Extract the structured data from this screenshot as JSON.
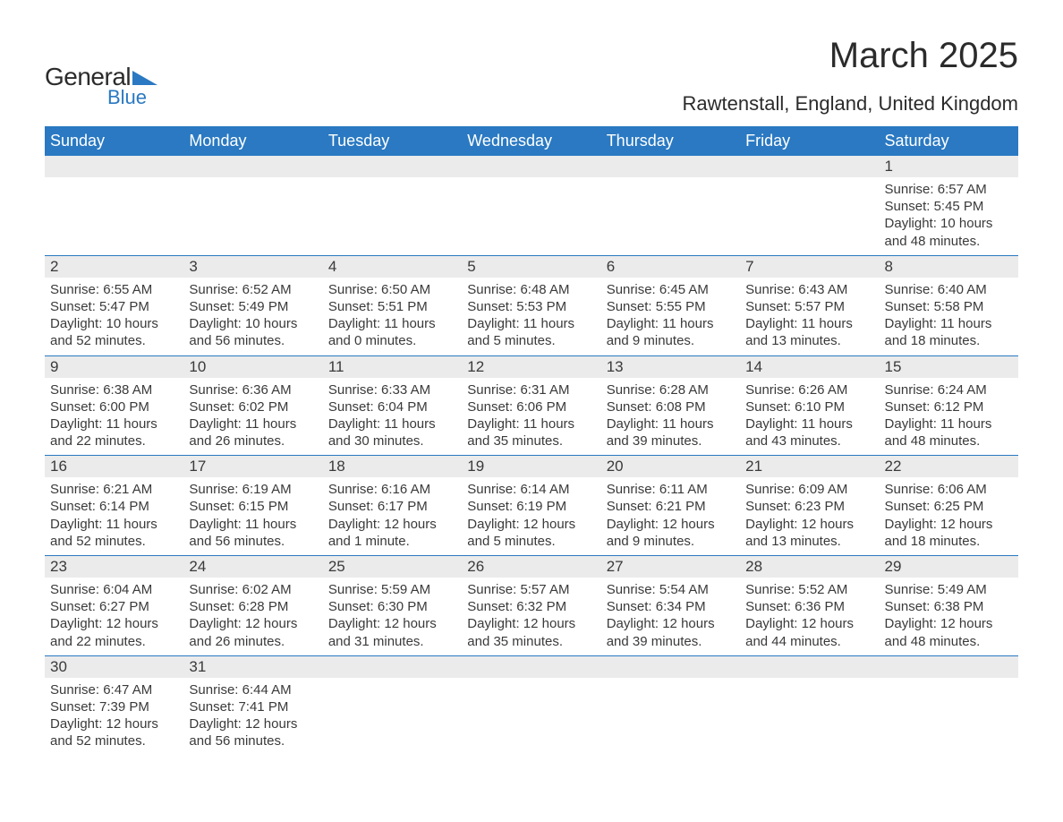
{
  "logo": {
    "text_general": "General",
    "text_blue": "Blue",
    "brand_color": "#2a79c2"
  },
  "title": "March 2025",
  "location": "Rawtenstall, England, United Kingdom",
  "day_headers": [
    "Sunday",
    "Monday",
    "Tuesday",
    "Wednesday",
    "Thursday",
    "Friday",
    "Saturday"
  ],
  "colors": {
    "header_bg": "#2a79c2",
    "header_text": "#ffffff",
    "daynum_bg": "#ebebeb",
    "text": "#3a3a3a",
    "rule": "#2a79c2",
    "page_bg": "#ffffff"
  },
  "typography": {
    "title_fontsize": 40,
    "location_fontsize": 22,
    "header_fontsize": 18,
    "daynum_fontsize": 17,
    "body_fontsize": 15
  },
  "weeks": [
    [
      null,
      null,
      null,
      null,
      null,
      null,
      {
        "day": "1",
        "sunrise": "Sunrise: 6:57 AM",
        "sunset": "Sunset: 5:45 PM",
        "daylight": "Daylight: 10 hours and 48 minutes."
      }
    ],
    [
      {
        "day": "2",
        "sunrise": "Sunrise: 6:55 AM",
        "sunset": "Sunset: 5:47 PM",
        "daylight": "Daylight: 10 hours and 52 minutes."
      },
      {
        "day": "3",
        "sunrise": "Sunrise: 6:52 AM",
        "sunset": "Sunset: 5:49 PM",
        "daylight": "Daylight: 10 hours and 56 minutes."
      },
      {
        "day": "4",
        "sunrise": "Sunrise: 6:50 AM",
        "sunset": "Sunset: 5:51 PM",
        "daylight": "Daylight: 11 hours and 0 minutes."
      },
      {
        "day": "5",
        "sunrise": "Sunrise: 6:48 AM",
        "sunset": "Sunset: 5:53 PM",
        "daylight": "Daylight: 11 hours and 5 minutes."
      },
      {
        "day": "6",
        "sunrise": "Sunrise: 6:45 AM",
        "sunset": "Sunset: 5:55 PM",
        "daylight": "Daylight: 11 hours and 9 minutes."
      },
      {
        "day": "7",
        "sunrise": "Sunrise: 6:43 AM",
        "sunset": "Sunset: 5:57 PM",
        "daylight": "Daylight: 11 hours and 13 minutes."
      },
      {
        "day": "8",
        "sunrise": "Sunrise: 6:40 AM",
        "sunset": "Sunset: 5:58 PM",
        "daylight": "Daylight: 11 hours and 18 minutes."
      }
    ],
    [
      {
        "day": "9",
        "sunrise": "Sunrise: 6:38 AM",
        "sunset": "Sunset: 6:00 PM",
        "daylight": "Daylight: 11 hours and 22 minutes."
      },
      {
        "day": "10",
        "sunrise": "Sunrise: 6:36 AM",
        "sunset": "Sunset: 6:02 PM",
        "daylight": "Daylight: 11 hours and 26 minutes."
      },
      {
        "day": "11",
        "sunrise": "Sunrise: 6:33 AM",
        "sunset": "Sunset: 6:04 PM",
        "daylight": "Daylight: 11 hours and 30 minutes."
      },
      {
        "day": "12",
        "sunrise": "Sunrise: 6:31 AM",
        "sunset": "Sunset: 6:06 PM",
        "daylight": "Daylight: 11 hours and 35 minutes."
      },
      {
        "day": "13",
        "sunrise": "Sunrise: 6:28 AM",
        "sunset": "Sunset: 6:08 PM",
        "daylight": "Daylight: 11 hours and 39 minutes."
      },
      {
        "day": "14",
        "sunrise": "Sunrise: 6:26 AM",
        "sunset": "Sunset: 6:10 PM",
        "daylight": "Daylight: 11 hours and 43 minutes."
      },
      {
        "day": "15",
        "sunrise": "Sunrise: 6:24 AM",
        "sunset": "Sunset: 6:12 PM",
        "daylight": "Daylight: 11 hours and 48 minutes."
      }
    ],
    [
      {
        "day": "16",
        "sunrise": "Sunrise: 6:21 AM",
        "sunset": "Sunset: 6:14 PM",
        "daylight": "Daylight: 11 hours and 52 minutes."
      },
      {
        "day": "17",
        "sunrise": "Sunrise: 6:19 AM",
        "sunset": "Sunset: 6:15 PM",
        "daylight": "Daylight: 11 hours and 56 minutes."
      },
      {
        "day": "18",
        "sunrise": "Sunrise: 6:16 AM",
        "sunset": "Sunset: 6:17 PM",
        "daylight": "Daylight: 12 hours and 1 minute."
      },
      {
        "day": "19",
        "sunrise": "Sunrise: 6:14 AM",
        "sunset": "Sunset: 6:19 PM",
        "daylight": "Daylight: 12 hours and 5 minutes."
      },
      {
        "day": "20",
        "sunrise": "Sunrise: 6:11 AM",
        "sunset": "Sunset: 6:21 PM",
        "daylight": "Daylight: 12 hours and 9 minutes."
      },
      {
        "day": "21",
        "sunrise": "Sunrise: 6:09 AM",
        "sunset": "Sunset: 6:23 PM",
        "daylight": "Daylight: 12 hours and 13 minutes."
      },
      {
        "day": "22",
        "sunrise": "Sunrise: 6:06 AM",
        "sunset": "Sunset: 6:25 PM",
        "daylight": "Daylight: 12 hours and 18 minutes."
      }
    ],
    [
      {
        "day": "23",
        "sunrise": "Sunrise: 6:04 AM",
        "sunset": "Sunset: 6:27 PM",
        "daylight": "Daylight: 12 hours and 22 minutes."
      },
      {
        "day": "24",
        "sunrise": "Sunrise: 6:02 AM",
        "sunset": "Sunset: 6:28 PM",
        "daylight": "Daylight: 12 hours and 26 minutes."
      },
      {
        "day": "25",
        "sunrise": "Sunrise: 5:59 AM",
        "sunset": "Sunset: 6:30 PM",
        "daylight": "Daylight: 12 hours and 31 minutes."
      },
      {
        "day": "26",
        "sunrise": "Sunrise: 5:57 AM",
        "sunset": "Sunset: 6:32 PM",
        "daylight": "Daylight: 12 hours and 35 minutes."
      },
      {
        "day": "27",
        "sunrise": "Sunrise: 5:54 AM",
        "sunset": "Sunset: 6:34 PM",
        "daylight": "Daylight: 12 hours and 39 minutes."
      },
      {
        "day": "28",
        "sunrise": "Sunrise: 5:52 AM",
        "sunset": "Sunset: 6:36 PM",
        "daylight": "Daylight: 12 hours and 44 minutes."
      },
      {
        "day": "29",
        "sunrise": "Sunrise: 5:49 AM",
        "sunset": "Sunset: 6:38 PM",
        "daylight": "Daylight: 12 hours and 48 minutes."
      }
    ],
    [
      {
        "day": "30",
        "sunrise": "Sunrise: 6:47 AM",
        "sunset": "Sunset: 7:39 PM",
        "daylight": "Daylight: 12 hours and 52 minutes."
      },
      {
        "day": "31",
        "sunrise": "Sunrise: 6:44 AM",
        "sunset": "Sunset: 7:41 PM",
        "daylight": "Daylight: 12 hours and 56 minutes."
      },
      null,
      null,
      null,
      null,
      null
    ]
  ]
}
